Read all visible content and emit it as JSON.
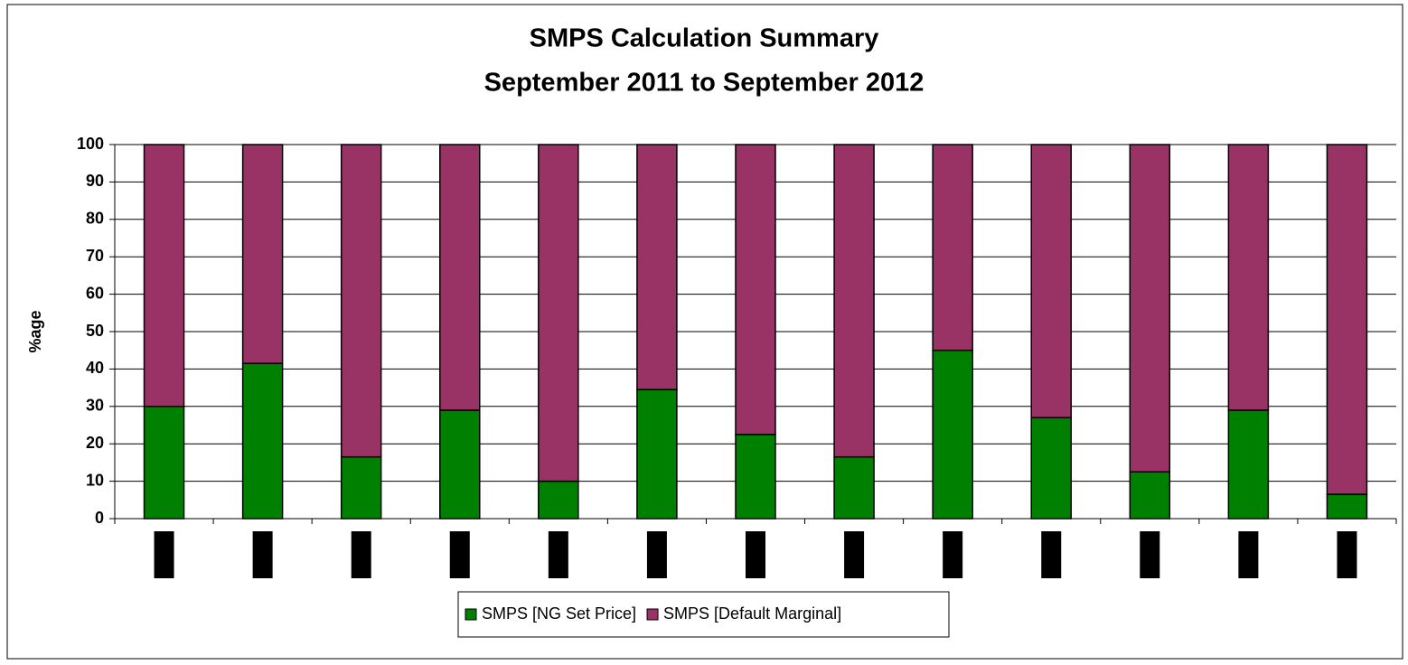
{
  "chart_data": {
    "type": "stacked_bar",
    "title": "SMPS Calculation Summary",
    "subtitle": "September 2011 to September 2012",
    "y_label": "%age",
    "categories": [
      null,
      null,
      null,
      null,
      null,
      null,
      null,
      null,
      null,
      null,
      null,
      null,
      null
    ],
    "series": [
      {
        "name": "SMPS [NG Set Price]",
        "color": "#008000",
        "values": [
          30,
          41.5,
          16.5,
          29,
          10,
          34.5,
          22.5,
          16.5,
          45,
          27,
          12.5,
          29,
          6.5
        ]
      },
      {
        "name": "SMPS [Default Marginal]",
        "color": "#993366",
        "values": [
          70,
          58.5,
          83.5,
          71,
          90,
          65.5,
          77.5,
          83.5,
          55,
          73,
          87.5,
          71,
          93.5
        ]
      }
    ],
    "ylim": [
      0,
      100
    ],
    "yticks": [
      0,
      10,
      20,
      30,
      40,
      50,
      60,
      70,
      80,
      90,
      100
    ],
    "grid": true,
    "legend": "bottom"
  }
}
